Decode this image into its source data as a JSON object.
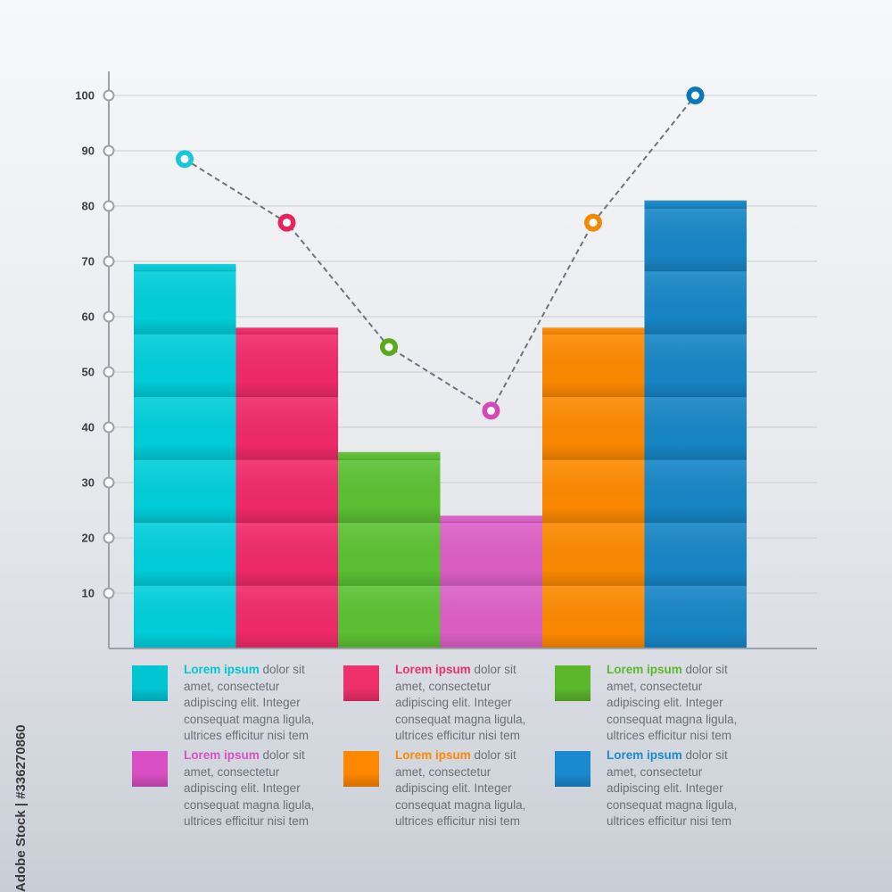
{
  "chart_data": {
    "type": "bar",
    "ylim": [
      0,
      100
    ],
    "yticks": [
      10,
      20,
      30,
      40,
      50,
      60,
      70,
      80,
      90,
      100
    ],
    "grid": true,
    "series": [
      {
        "values": [
          69.5,
          58,
          35.5,
          24,
          58,
          81
        ],
        "colors": [
          "#00d0dc",
          "#f22a6b",
          "#5cc233",
          "#de60c8",
          "#ff8a00",
          "#1787c8"
        ]
      },
      {
        "type": "line",
        "style": "dashed",
        "values": [
          88.5,
          77,
          54.5,
          43,
          77,
          100
        ],
        "colors": [
          "#19c8d8",
          "#e8245e",
          "#5aaa1e",
          "#d648b8",
          "#f28a00",
          "#0a78b8"
        ]
      }
    ]
  },
  "legend": [
    {
      "title": "Lorem ipsum",
      "text": " dolor sit amet, consectetur adipiscing elit. Integer consequat magna ligula, ultrices efficitur nisi tem",
      "color": "#00c6d4"
    },
    {
      "title": "Lorem ipsum",
      "text": " dolor sit amet, consectetur adipiscing elit. Integer consequat magna ligula, ultrices efficitur nisi tem",
      "color": "#f0306a"
    },
    {
      "title": "Lorem ipsum",
      "text": " dolor sit amet, consectetur adipiscing elit. Integer consequat magna ligula, ultrices efficitur nisi tem",
      "color": "#5cb82a"
    },
    {
      "title": "Lorem ipsum",
      "text": " dolor sit amet, consectetur adipiscing elit. Integer consequat magna ligula, ultrices efficitur nisi tem",
      "color": "#d850c4"
    },
    {
      "title": "Lorem ipsum",
      "text": " dolor sit amet, consectetur adipiscing elit. Integer consequat magna ligula, ultrices efficitur nisi tem",
      "color": "#ff8800"
    },
    {
      "title": "Lorem ipsum",
      "text": " dolor sit amet, consectetur adipiscing elit. Integer consequat magna ligula, ultrices efficitur nisi tem",
      "color": "#1a8ad0"
    }
  ],
  "side_label": "Adobe Stock | #336270860"
}
